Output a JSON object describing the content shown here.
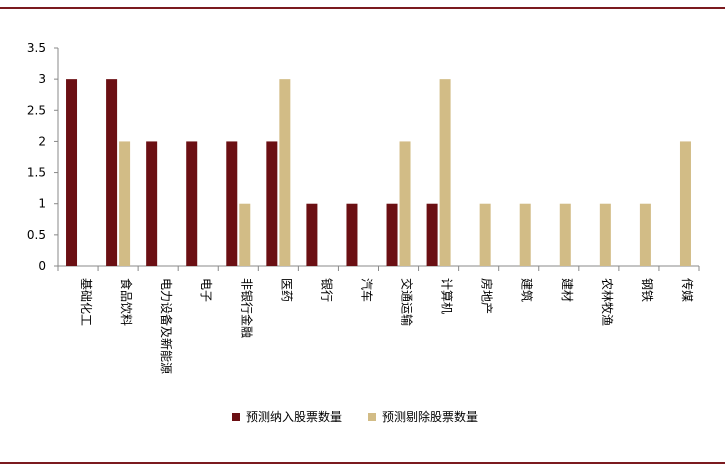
{
  "chart_data": {
    "type": "bar",
    "categories": [
      "基础化工",
      "食品饮料",
      "电力设备及新能源",
      "电子",
      "非银行金融",
      "医药",
      "银行",
      "汽车",
      "交通运输",
      "计算机",
      "房地产",
      "建筑",
      "建材",
      "农林牧渔",
      "钢铁",
      "传媒"
    ],
    "series": [
      {
        "name": "预测纳入股票数量",
        "color": "#6b0f13",
        "values": [
          3,
          3,
          2,
          2,
          2,
          2,
          1,
          1,
          1,
          1,
          0,
          0,
          0,
          0,
          0,
          0
        ]
      },
      {
        "name": "预测剔除股票数量",
        "color": "#d2bc86",
        "values": [
          0,
          2,
          0,
          0,
          1,
          3,
          0,
          0,
          2,
          3,
          1,
          1,
          1,
          1,
          1,
          2
        ]
      }
    ],
    "ylim": [
      0,
      3.5
    ],
    "yticks": [
      "0",
      "0.5",
      "1",
      "1.5",
      "2",
      "2.5",
      "3",
      "3.5"
    ],
    "legend_position": "bottom",
    "grid": false
  }
}
